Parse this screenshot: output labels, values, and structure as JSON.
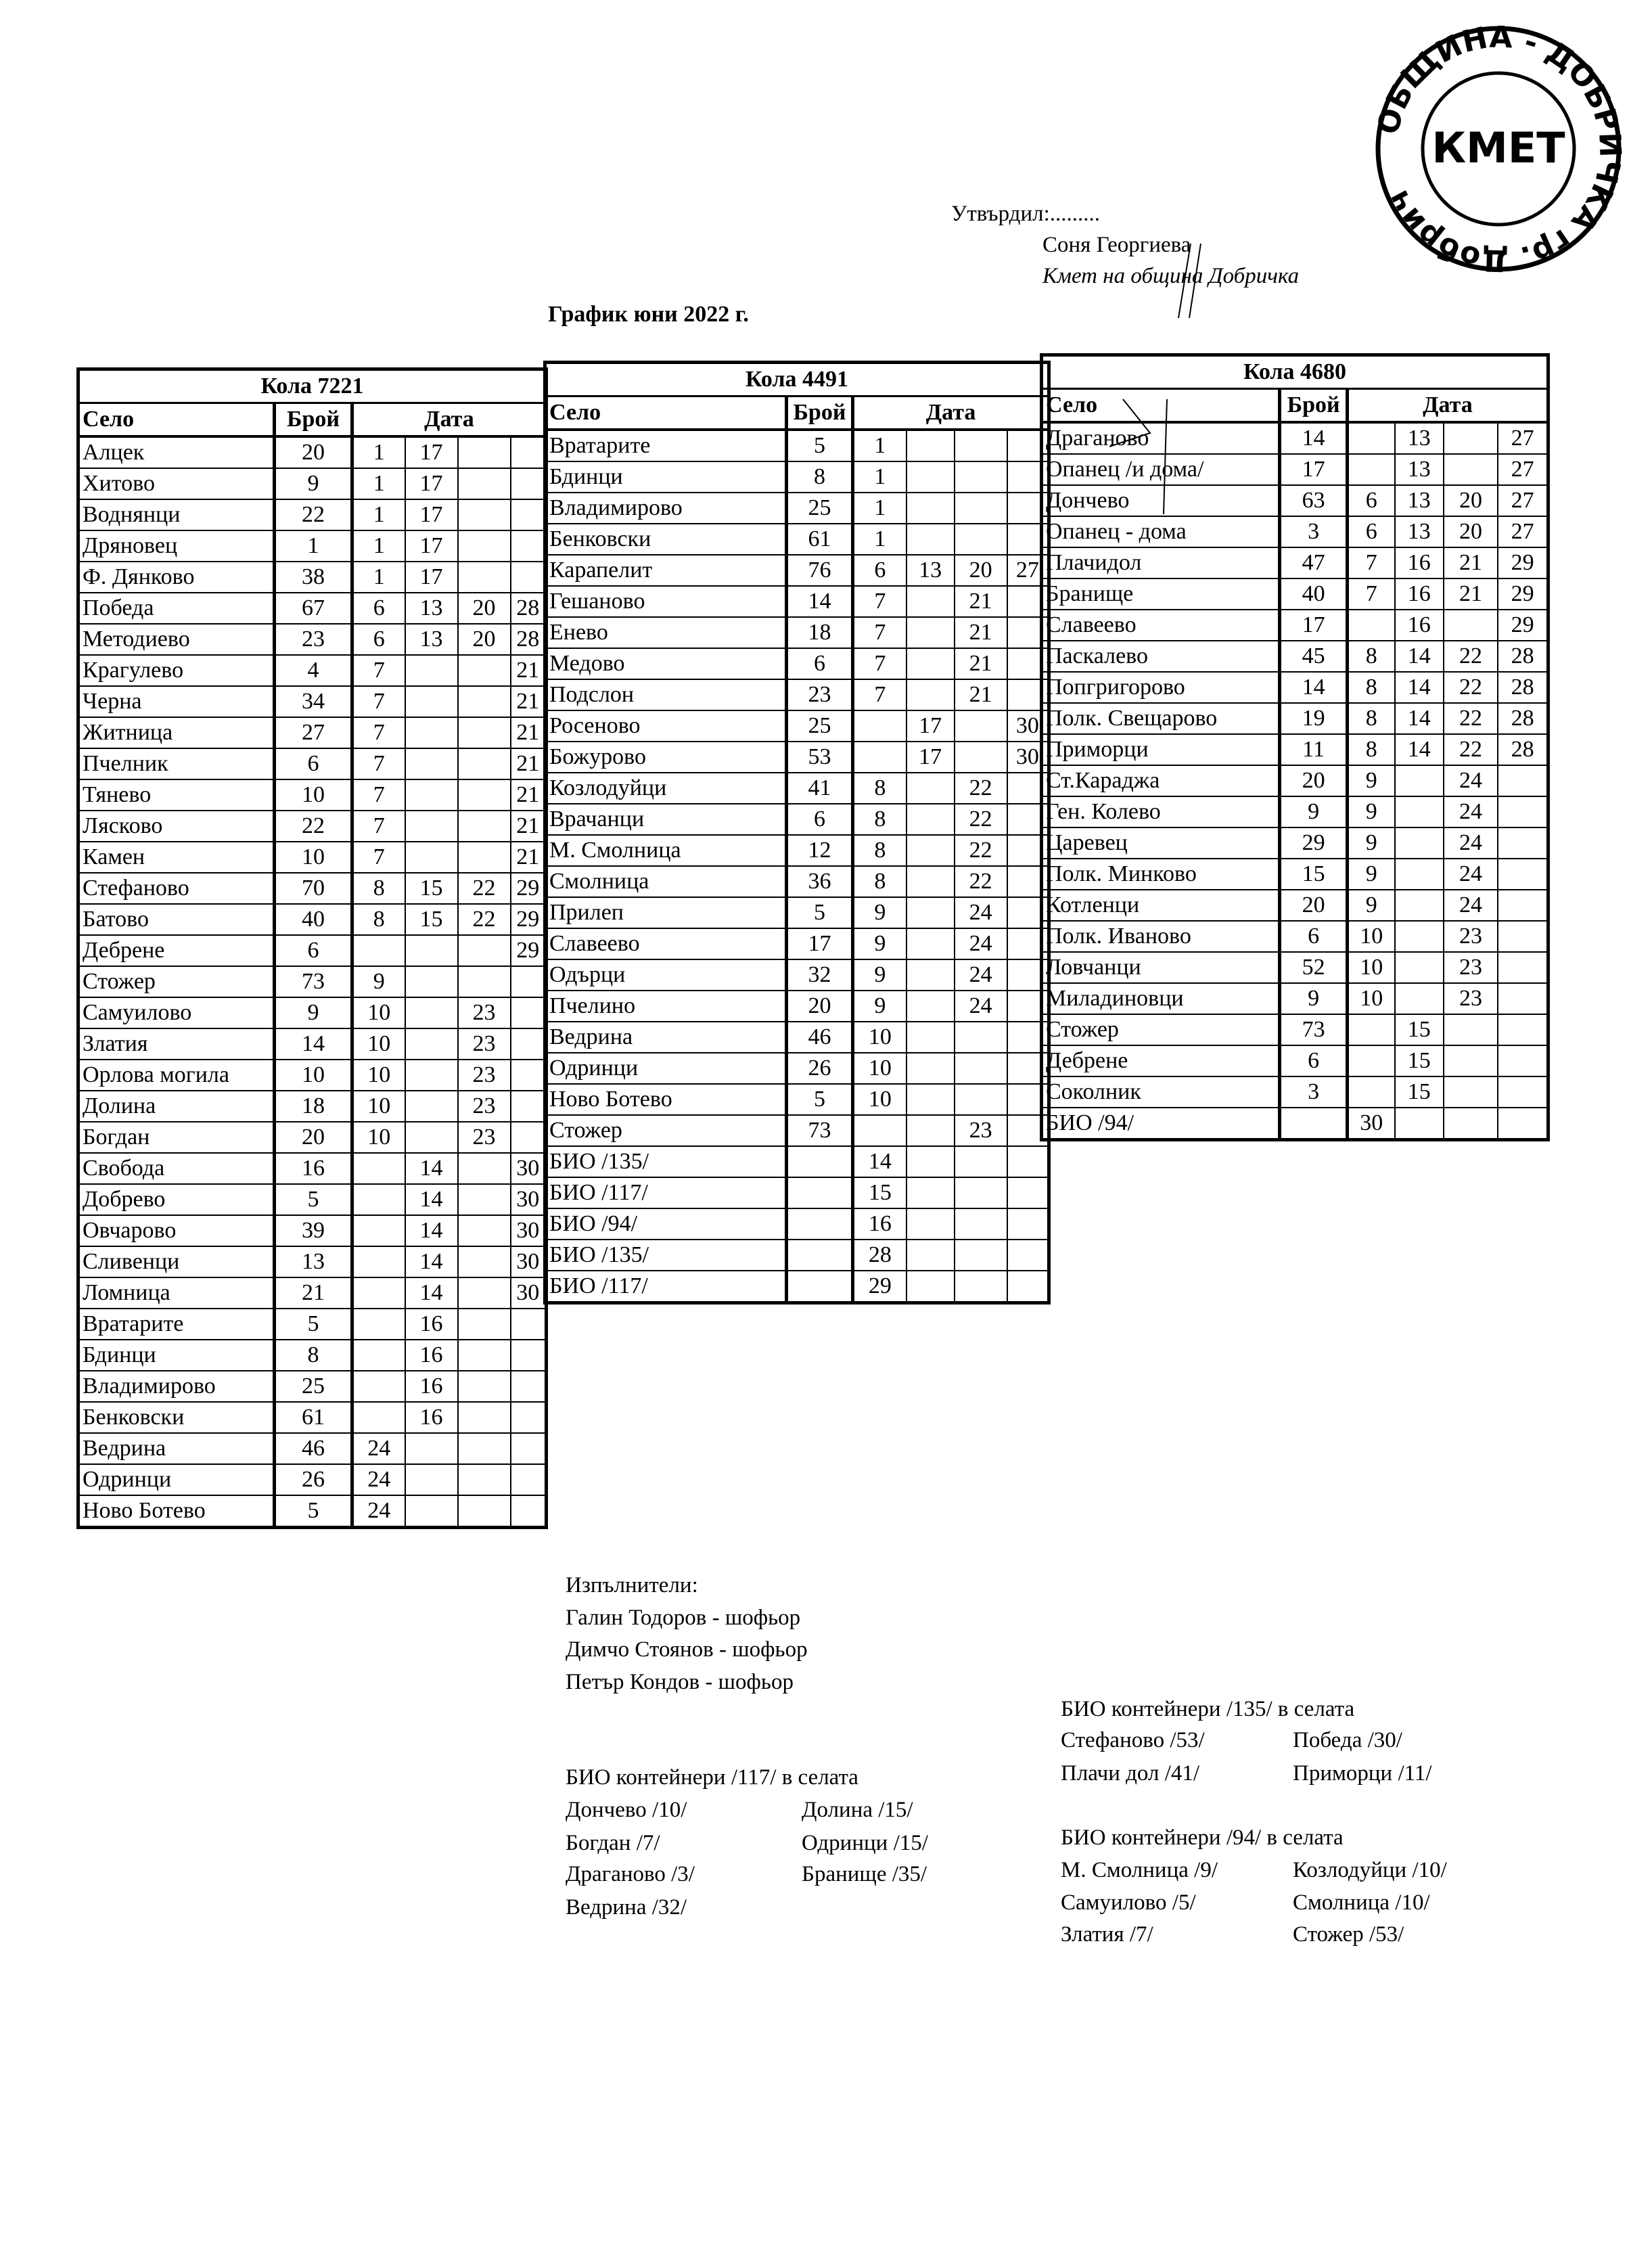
{
  "approval": {
    "approved_by": "Утвърдил:.........",
    "name": "Соня Георгиева",
    "position": "Кмет на община Добричка"
  },
  "stamp": {
    "ring_text": "ОБЩИНА - ДОБРИЧКА гр. Добрич",
    "center_text": "КМЕТ"
  },
  "title": "График юни 2022 г.",
  "header_labels": {
    "village": "Село",
    "count": "Брой",
    "date": "Дата"
  },
  "tables": [
    {
      "caption": "Кола 7221",
      "rows": [
        {
          "name": "Алцек",
          "count": "20",
          "dates": [
            "1",
            "17",
            "",
            ""
          ]
        },
        {
          "name": "Хитово",
          "count": "9",
          "dates": [
            "1",
            "17",
            "",
            ""
          ]
        },
        {
          "name": "Воднянци",
          "count": "22",
          "dates": [
            "1",
            "17",
            "",
            ""
          ]
        },
        {
          "name": "Дряновец",
          "count": "1",
          "dates": [
            "1",
            "17",
            "",
            ""
          ]
        },
        {
          "name": "Ф. Дянково",
          "count": "38",
          "dates": [
            "1",
            "17",
            "",
            ""
          ]
        },
        {
          "name": "Победа",
          "count": "67",
          "dates": [
            "6",
            "13",
            "20",
            "28"
          ]
        },
        {
          "name": "Методиево",
          "count": "23",
          "dates": [
            "6",
            "13",
            "20",
            "28"
          ]
        },
        {
          "name": "Крагулево",
          "count": "4",
          "dates": [
            "7",
            "",
            "",
            "21"
          ]
        },
        {
          "name": "Черна",
          "count": "34",
          "dates": [
            "7",
            "",
            "",
            "21"
          ]
        },
        {
          "name": "Житница",
          "count": "27",
          "dates": [
            "7",
            "",
            "",
            "21"
          ]
        },
        {
          "name": "Пчелник",
          "count": "6",
          "dates": [
            "7",
            "",
            "",
            "21"
          ]
        },
        {
          "name": "Тянево",
          "count": "10",
          "dates": [
            "7",
            "",
            "",
            "21"
          ]
        },
        {
          "name": "Лясково",
          "count": "22",
          "dates": [
            "7",
            "",
            "",
            "21"
          ]
        },
        {
          "name": "Камен",
          "count": "10",
          "dates": [
            "7",
            "",
            "",
            "21"
          ]
        },
        {
          "name": "Стефаново",
          "count": "70",
          "dates": [
            "8",
            "15",
            "22",
            "29"
          ]
        },
        {
          "name": "Батово",
          "count": "40",
          "dates": [
            "8",
            "15",
            "22",
            "29"
          ]
        },
        {
          "name": "Дебрене",
          "count": "6",
          "dates": [
            "",
            "",
            "",
            "29"
          ]
        },
        {
          "name": "Стожер",
          "count": "73",
          "dates": [
            "9",
            "",
            "",
            ""
          ]
        },
        {
          "name": "Самуилово",
          "count": "9",
          "dates": [
            "10",
            "",
            "23",
            ""
          ]
        },
        {
          "name": "Златия",
          "count": "14",
          "dates": [
            "10",
            "",
            "23",
            ""
          ]
        },
        {
          "name": "Орлова могила",
          "count": "10",
          "dates": [
            "10",
            "",
            "23",
            ""
          ]
        },
        {
          "name": "Долина",
          "count": "18",
          "dates": [
            "10",
            "",
            "23",
            ""
          ]
        },
        {
          "name": "Богдан",
          "count": "20",
          "dates": [
            "10",
            "",
            "23",
            ""
          ]
        },
        {
          "name": "Свобода",
          "count": "16",
          "dates": [
            "",
            "14",
            "",
            "30"
          ]
        },
        {
          "name": "Добрево",
          "count": "5",
          "dates": [
            "",
            "14",
            "",
            "30"
          ]
        },
        {
          "name": "Овчарово",
          "count": "39",
          "dates": [
            "",
            "14",
            "",
            "30"
          ]
        },
        {
          "name": "Сливенци",
          "count": "13",
          "dates": [
            "",
            "14",
            "",
            "30"
          ]
        },
        {
          "name": "Ломница",
          "count": "21",
          "dates": [
            "",
            "14",
            "",
            "30"
          ]
        },
        {
          "name": "Вратарите",
          "count": "5",
          "dates": [
            "",
            "16",
            "",
            ""
          ]
        },
        {
          "name": "Бдинци",
          "count": "8",
          "dates": [
            "",
            "16",
            "",
            ""
          ]
        },
        {
          "name": "Владимирово",
          "count": "25",
          "dates": [
            "",
            "16",
            "",
            ""
          ]
        },
        {
          "name": "Бенковски",
          "count": "61",
          "dates": [
            "",
            "16",
            "",
            ""
          ]
        },
        {
          "name": "Ведрина",
          "count": "46",
          "dates": [
            "24",
            "",
            "",
            ""
          ]
        },
        {
          "name": "Одринци",
          "count": "26",
          "dates": [
            "24",
            "",
            "",
            ""
          ]
        },
        {
          "name": "Ново Ботево",
          "count": "5",
          "dates": [
            "24",
            "",
            "",
            ""
          ]
        }
      ]
    },
    {
      "caption": "Кола 4491",
      "rows": [
        {
          "name": "Вратарите",
          "count": "5",
          "dates": [
            "1",
            "",
            "",
            ""
          ]
        },
        {
          "name": "Бдинци",
          "count": "8",
          "dates": [
            "1",
            "",
            "",
            ""
          ]
        },
        {
          "name": "Владимирово",
          "count": "25",
          "dates": [
            "1",
            "",
            "",
            ""
          ]
        },
        {
          "name": "Бенковски",
          "count": "61",
          "dates": [
            "1",
            "",
            "",
            ""
          ]
        },
        {
          "name": "Карапелит",
          "count": "76",
          "dates": [
            "6",
            "13",
            "20",
            "27"
          ]
        },
        {
          "name": "Гешаново",
          "count": "14",
          "dates": [
            "7",
            "",
            "21",
            ""
          ]
        },
        {
          "name": "Енево",
          "count": "18",
          "dates": [
            "7",
            "",
            "21",
            ""
          ]
        },
        {
          "name": "Медово",
          "count": "6",
          "dates": [
            "7",
            "",
            "21",
            ""
          ]
        },
        {
          "name": "Подслон",
          "count": "23",
          "dates": [
            "7",
            "",
            "21",
            ""
          ]
        },
        {
          "name": "Росеново",
          "count": "25",
          "dates": [
            "",
            "17",
            "",
            "30"
          ]
        },
        {
          "name": "Божурово",
          "count": "53",
          "dates": [
            "",
            "17",
            "",
            "30"
          ]
        },
        {
          "name": "Козлодуйци",
          "count": "41",
          "dates": [
            "8",
            "",
            "22",
            ""
          ]
        },
        {
          "name": "Врачанци",
          "count": "6",
          "dates": [
            "8",
            "",
            "22",
            ""
          ]
        },
        {
          "name": "М. Смолница",
          "count": "12",
          "dates": [
            "8",
            "",
            "22",
            ""
          ]
        },
        {
          "name": "Смолница",
          "count": "36",
          "dates": [
            "8",
            "",
            "22",
            ""
          ]
        },
        {
          "name": "Прилеп",
          "count": "5",
          "dates": [
            "9",
            "",
            "24",
            ""
          ]
        },
        {
          "name": "Славеево",
          "count": "17",
          "dates": [
            "9",
            "",
            "24",
            ""
          ]
        },
        {
          "name": "Одърци",
          "count": "32",
          "dates": [
            "9",
            "",
            "24",
            ""
          ]
        },
        {
          "name": "Пчелино",
          "count": "20",
          "dates": [
            "9",
            "",
            "24",
            ""
          ]
        },
        {
          "name": "Ведрина",
          "count": "46",
          "dates": [
            "10",
            "",
            "",
            ""
          ]
        },
        {
          "name": "Одринци",
          "count": "26",
          "dates": [
            "10",
            "",
            "",
            ""
          ]
        },
        {
          "name": "Ново Ботево",
          "count": "5",
          "dates": [
            "10",
            "",
            "",
            ""
          ]
        },
        {
          "name": "Стожер",
          "count": "73",
          "dates": [
            "",
            "",
            "23",
            ""
          ]
        },
        {
          "name": "БИО /135/",
          "count": "",
          "dates": [
            "14",
            "",
            "",
            ""
          ]
        },
        {
          "name": "БИО /117/",
          "count": "",
          "dates": [
            "15",
            "",
            "",
            ""
          ]
        },
        {
          "name": "БИО /94/",
          "count": "",
          "dates": [
            "16",
            "",
            "",
            ""
          ]
        },
        {
          "name": "БИО /135/",
          "count": "",
          "dates": [
            "28",
            "",
            "",
            ""
          ]
        },
        {
          "name": "БИО /117/",
          "count": "",
          "dates": [
            "29",
            "",
            "",
            ""
          ]
        }
      ]
    },
    {
      "caption": "Кола 4680",
      "rows": [
        {
          "name": "Драганово",
          "count": "14",
          "dates": [
            "",
            "13",
            "",
            "27"
          ]
        },
        {
          "name": "Опанец /и дома/",
          "count": "17",
          "dates": [
            "",
            "13",
            "",
            "27"
          ]
        },
        {
          "name": "Дончево",
          "count": "63",
          "dates": [
            "6",
            "13",
            "20",
            "27"
          ]
        },
        {
          "name": "Опанец - дома",
          "count": "3",
          "dates": [
            "6",
            "13",
            "20",
            "27"
          ]
        },
        {
          "name": "Плачидол",
          "count": "47",
          "dates": [
            "7",
            "16",
            "21",
            "29"
          ]
        },
        {
          "name": "Бранище",
          "count": "40",
          "dates": [
            "7",
            "16",
            "21",
            "29"
          ]
        },
        {
          "name": "Славеево",
          "count": "17",
          "dates": [
            "",
            "16",
            "",
            "29"
          ]
        },
        {
          "name": "Паскалево",
          "count": "45",
          "dates": [
            "8",
            "14",
            "22",
            "28"
          ]
        },
        {
          "name": "Попгригорово",
          "count": "14",
          "dates": [
            "8",
            "14",
            "22",
            "28"
          ]
        },
        {
          "name": "Полк. Свещарово",
          "count": "19",
          "dates": [
            "8",
            "14",
            "22",
            "28"
          ]
        },
        {
          "name": "Приморци",
          "count": "11",
          "dates": [
            "8",
            "14",
            "22",
            "28"
          ]
        },
        {
          "name": "Ст.Караджа",
          "count": "20",
          "dates": [
            "9",
            "",
            "24",
            ""
          ]
        },
        {
          "name": "Ген. Колево",
          "count": "9",
          "dates": [
            "9",
            "",
            "24",
            ""
          ]
        },
        {
          "name": "Царевец",
          "count": "29",
          "dates": [
            "9",
            "",
            "24",
            ""
          ]
        },
        {
          "name": "Полк. Минково",
          "count": "15",
          "dates": [
            "9",
            "",
            "24",
            ""
          ]
        },
        {
          "name": "Котленци",
          "count": "20",
          "dates": [
            "9",
            "",
            "24",
            ""
          ]
        },
        {
          "name": "Полк. Иваново",
          "count": "6",
          "dates": [
            "10",
            "",
            "23",
            ""
          ]
        },
        {
          "name": "Ловчанци",
          "count": "52",
          "dates": [
            "10",
            "",
            "23",
            ""
          ]
        },
        {
          "name": "Миладиновци",
          "count": "9",
          "dates": [
            "10",
            "",
            "23",
            ""
          ]
        },
        {
          "name": "Стожер",
          "count": "73",
          "dates": [
            "",
            "15",
            "",
            ""
          ]
        },
        {
          "name": "Дебрене",
          "count": "6",
          "dates": [
            "",
            "15",
            "",
            ""
          ]
        },
        {
          "name": "Соколник",
          "count": "3",
          "dates": [
            "",
            "15",
            "",
            ""
          ]
        },
        {
          "name": "БИО /94/",
          "count": "",
          "dates": [
            "30",
            "",
            "",
            ""
          ]
        }
      ]
    }
  ],
  "executors": {
    "heading": "Изпълнители:",
    "people": [
      "Галин Тодоров - шофьор",
      "Димчо Стоянов - шофьор",
      "Петър Кондов - шофьор"
    ]
  },
  "bio_117": {
    "heading": "БИО контейнери /117/ в селата",
    "col1": [
      "Дончево /10/",
      "Богдан /7/",
      "Драганово /3/",
      "Ведрина /32/"
    ],
    "col2": [
      "Долина /15/",
      "Одринци /15/",
      "Бранище /35/"
    ]
  },
  "bio_135": {
    "heading": "БИО контейнери /135/ в селата",
    "col1": [
      "Стефаново /53/",
      "Плачи дол /41/"
    ],
    "col2": [
      "Победа /30/",
      "Приморци /11/"
    ]
  },
  "bio_94": {
    "heading": "БИО контейнери /94/ в селата",
    "col1": [
      "М. Смолница /9/",
      "Самуилово /5/",
      "Златия /7/"
    ],
    "col2": [
      "Козлодуйци /10/",
      "Смолница /10/",
      "Стожер /53/"
    ]
  }
}
